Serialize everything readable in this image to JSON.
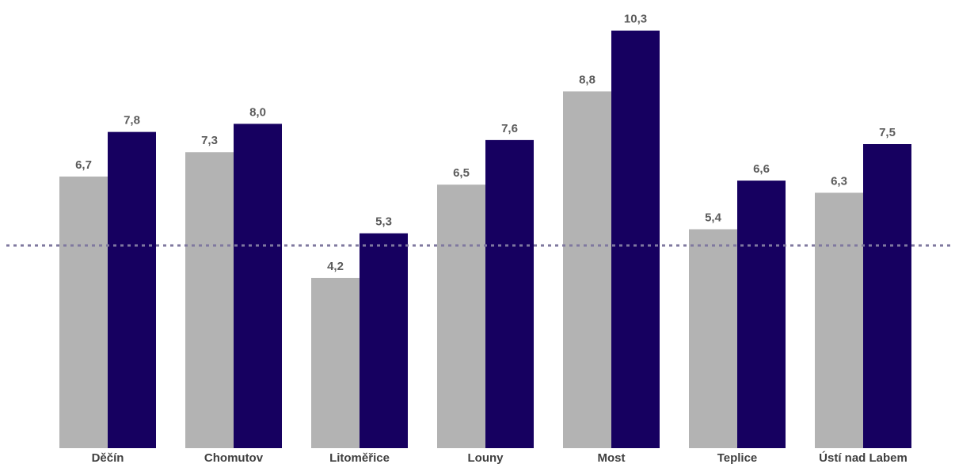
{
  "chart_data": {
    "type": "bar",
    "categories": [
      "Děčín",
      "Chomutov",
      "Litoměřice",
      "Louny",
      "Most",
      "Teplice",
      "Ústí nad Labem"
    ],
    "series": [
      {
        "values": [
          6.7,
          7.3,
          4.2,
          6.5,
          8.8,
          5.4,
          6.3
        ],
        "color": "#b3b3b3"
      },
      {
        "values": [
          7.8,
          8.0,
          5.3,
          7.6,
          10.3,
          6.6,
          7.5
        ],
        "color": "#160060"
      }
    ],
    "value_labels": {
      "0": [
        "6,7",
        "7,3",
        "4,2",
        "6,5",
        "8,8",
        "5,4",
        "6,3"
      ],
      "1": [
        "7,8",
        "8,0",
        "5,3",
        "7,6",
        "10,3",
        "6,6",
        "7,5"
      ]
    },
    "reference_line": {
      "value": 5.0,
      "style": "dotted",
      "color": "#7f789f"
    },
    "ylim": [
      0,
      10.6
    ],
    "grid": false,
    "title": "",
    "xlabel": "",
    "ylabel": ""
  }
}
